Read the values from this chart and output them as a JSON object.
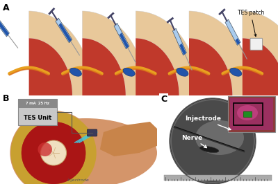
{
  "fig_width": 4.0,
  "fig_height": 2.66,
  "dpi": 100,
  "background_color": "#ffffff",
  "panel_A_label": "A",
  "panel_B_label": "B",
  "panel_C_label": "C",
  "tes_patch_text": "TES patch",
  "tes_unit_top": "7 mA  25 Hz",
  "tes_unit_bottom": "TES Unit",
  "injectrode_label": "Injectrode",
  "nerve_label": "Nerve",
  "skin_color": "#E8C89A",
  "skin_dark": "#D4A574",
  "muscle_color": "#C0392B",
  "muscle_dark": "#8B1A1A",
  "nerve_yellow": "#E8A020",
  "nerve_orange": "#D4601A",
  "injectrode_blue": "#2255AA",
  "injectrode_dark": "#1A3A7A",
  "wire_cyan": "#40C8E0",
  "syringe_gray": "#888888",
  "syringe_body": "#AACCEE",
  "syringe_plunger": "#334488"
}
